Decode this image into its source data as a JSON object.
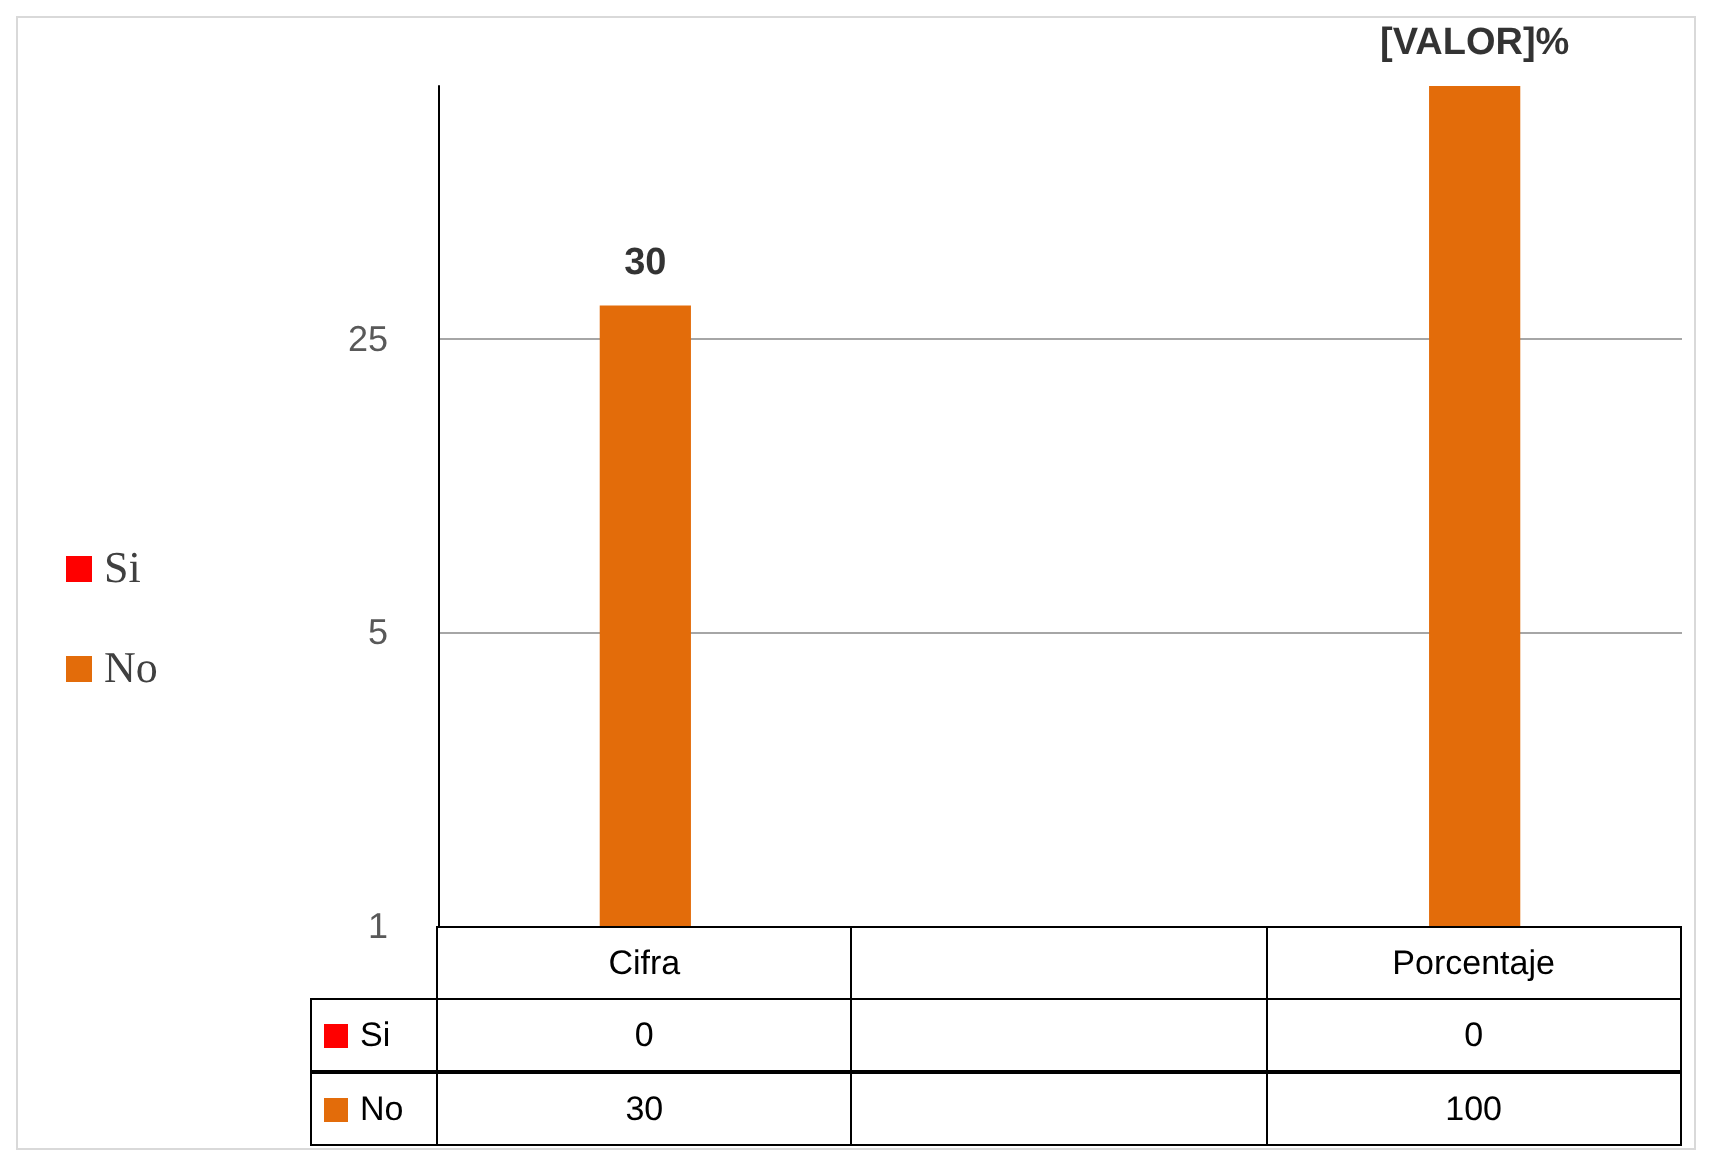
{
  "chart_data": {
    "type": "bar",
    "categories": [
      "Cifra",
      null,
      "Porcentaje"
    ],
    "series": [
      {
        "name": "Si",
        "color": "#ff0000",
        "values": [
          null,
          null,
          null
        ],
        "value_labels": [
          "0",
          null,
          "0"
        ]
      },
      {
        "name": "No",
        "color": "#e36c0a",
        "values": [
          30,
          null,
          100
        ],
        "value_labels": [
          "30",
          null,
          "100"
        ]
      }
    ],
    "annotations": [
      {
        "text": "30",
        "x": "Cifra",
        "y": 30
      },
      {
        "text": "[VALOR]%",
        "x": "Porcentaje",
        "y": 100
      }
    ],
    "log": true,
    "ylim": [
      1,
      100
    ],
    "yticks": [
      1,
      5,
      25
    ],
    "grid": "y",
    "legend": "left"
  }
}
